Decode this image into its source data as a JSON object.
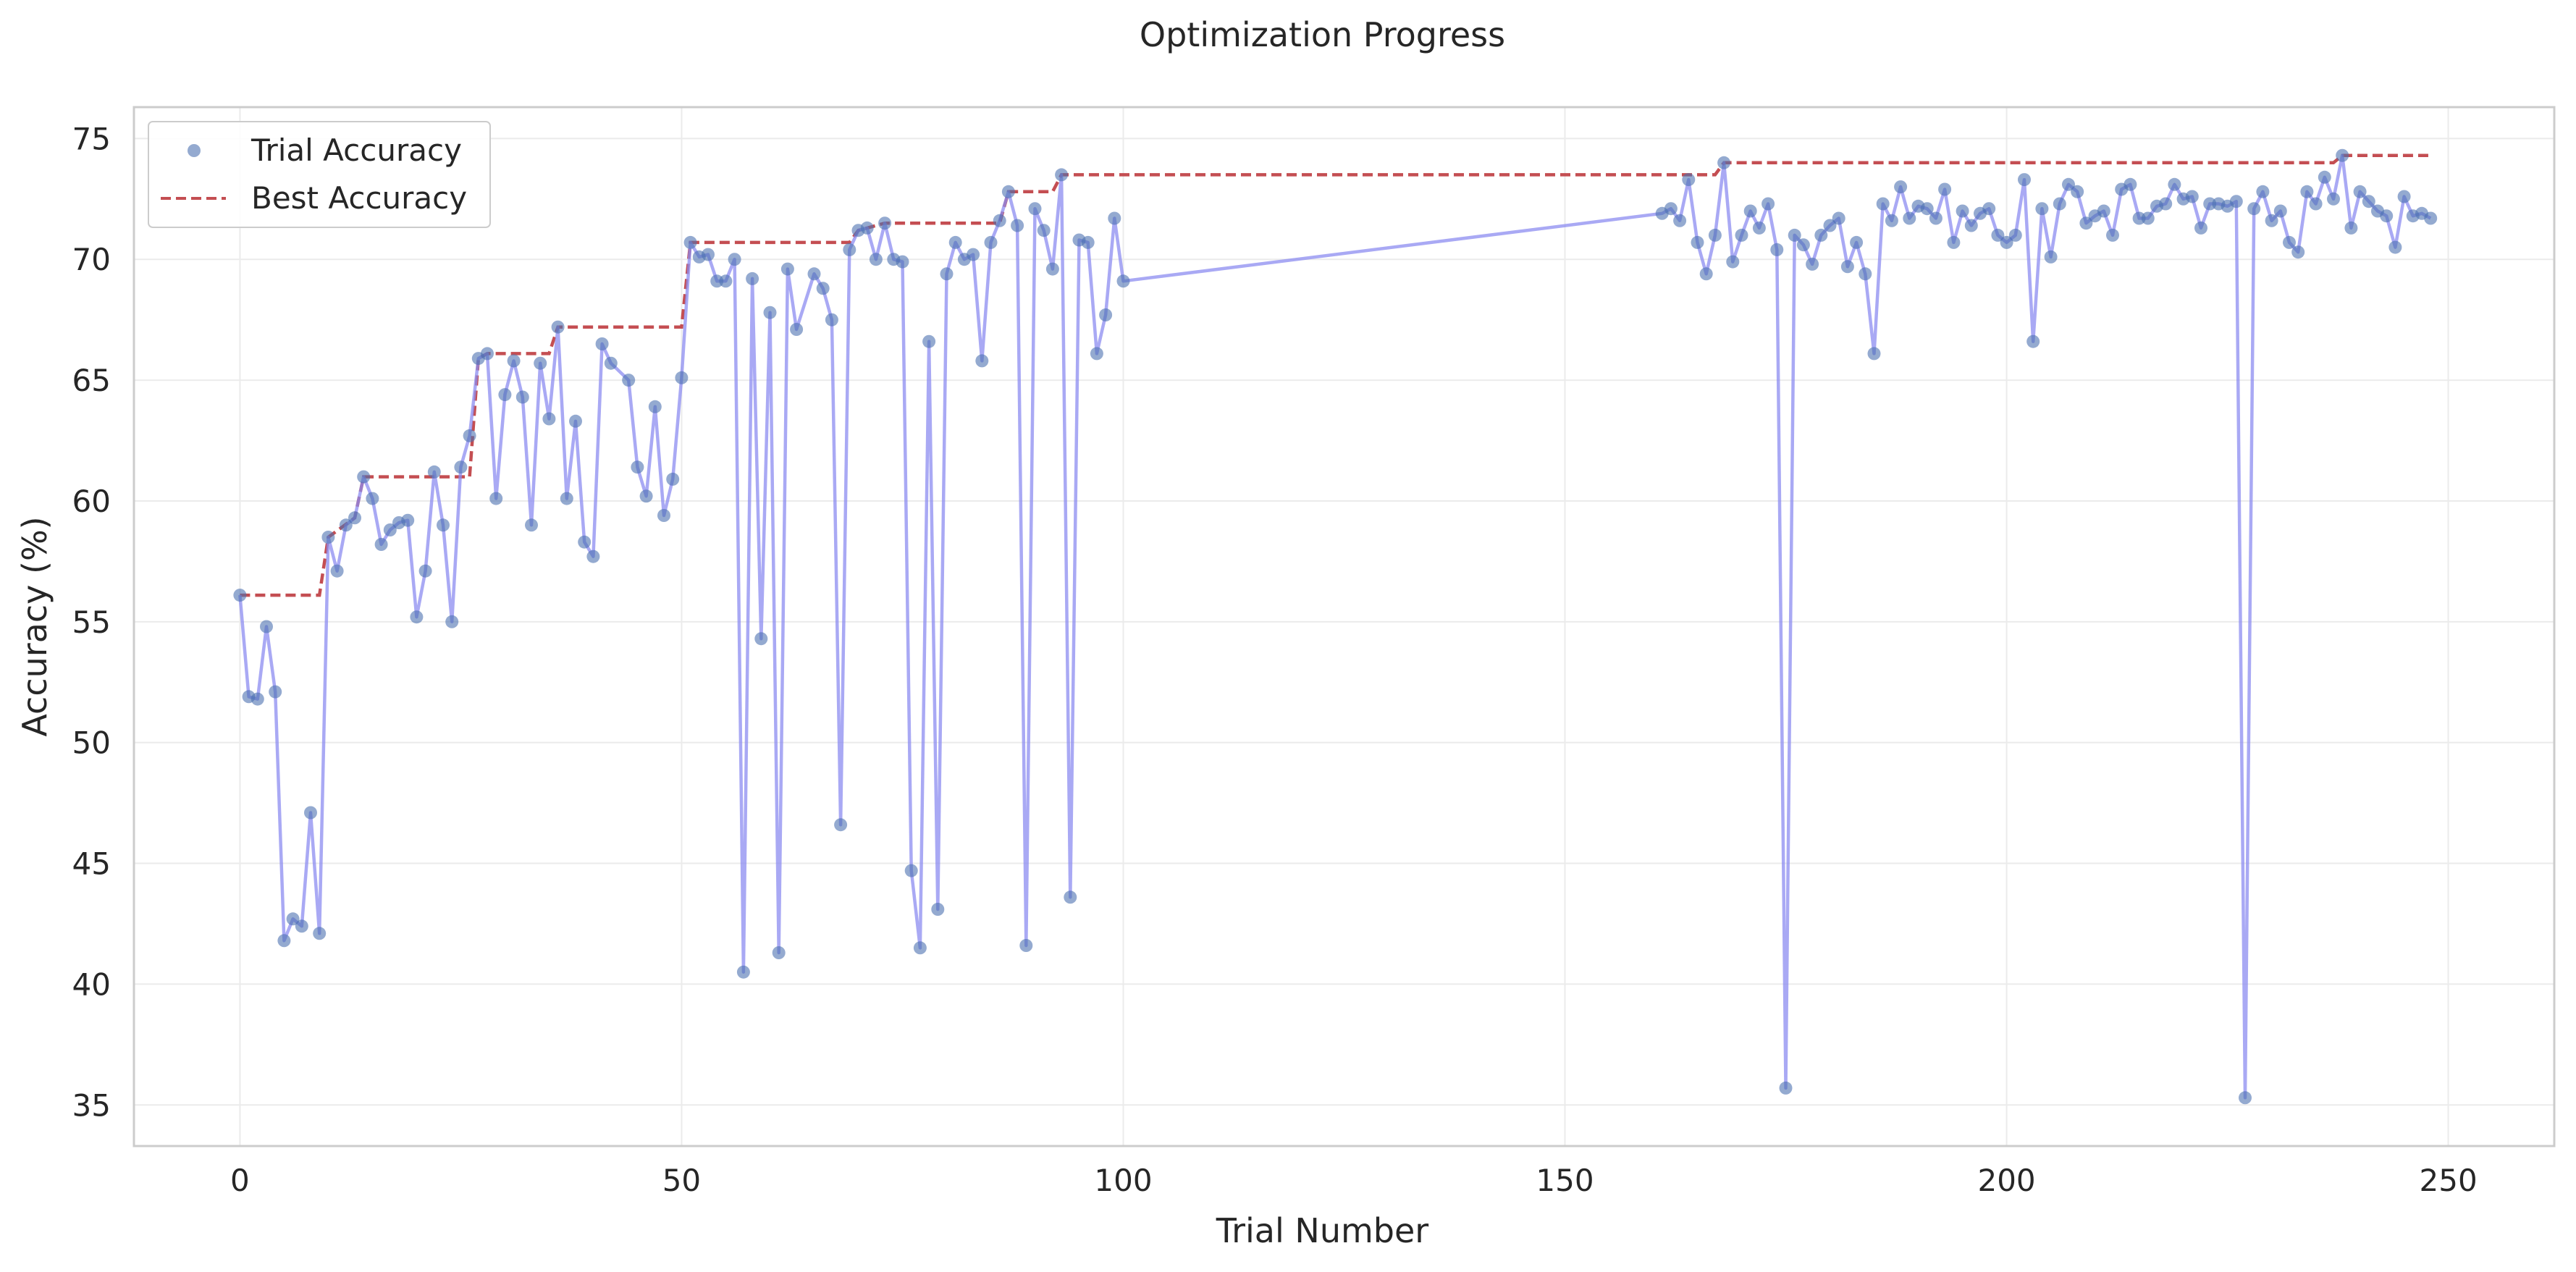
{
  "chart_data": {
    "type": "scatter",
    "title": "Optimization Progress",
    "xlabel": "Trial Number",
    "ylabel": "Accuracy (%)",
    "xlim": [
      -12,
      262
    ],
    "ylim": [
      33.3,
      76.3
    ],
    "xticks": [
      0,
      50,
      100,
      150,
      200,
      250
    ],
    "yticks": [
      35,
      40,
      45,
      50,
      55,
      60,
      65,
      70,
      75
    ],
    "grid": true,
    "legend_position": "top-left",
    "series": [
      {
        "name": "Trial Accuracy",
        "style": "scatter-with-connecting-line",
        "color": "#4c72b0",
        "line_color": "#8c8cf0",
        "points": [
          [
            0,
            56.1
          ],
          [
            1,
            51.9
          ],
          [
            2,
            51.8
          ],
          [
            3,
            54.8
          ],
          [
            4,
            52.1
          ],
          [
            5,
            41.8
          ],
          [
            6,
            42.7
          ],
          [
            7,
            42.4
          ],
          [
            8,
            47.1
          ],
          [
            9,
            42.1
          ],
          [
            10,
            58.5
          ],
          [
            11,
            57.1
          ],
          [
            12,
            59.0
          ],
          [
            13,
            59.3
          ],
          [
            14,
            61.0
          ],
          [
            15,
            60.1
          ],
          [
            16,
            58.2
          ],
          [
            17,
            58.8
          ],
          [
            18,
            59.1
          ],
          [
            19,
            59.2
          ],
          [
            20,
            55.2
          ],
          [
            21,
            57.1
          ],
          [
            22,
            61.2
          ],
          [
            23,
            59.0
          ],
          [
            24,
            55.0
          ],
          [
            25,
            61.4
          ],
          [
            26,
            62.7
          ],
          [
            27,
            65.9
          ],
          [
            28,
            66.1
          ],
          [
            29,
            60.1
          ],
          [
            30,
            64.4
          ],
          [
            31,
            65.8
          ],
          [
            32,
            64.3
          ],
          [
            33,
            59.0
          ],
          [
            34,
            65.7
          ],
          [
            35,
            63.4
          ],
          [
            36,
            67.2
          ],
          [
            37,
            60.1
          ],
          [
            38,
            63.3
          ],
          [
            39,
            58.3
          ],
          [
            40,
            57.7
          ],
          [
            41,
            66.5
          ],
          [
            42,
            65.7
          ],
          [
            44,
            65.0
          ],
          [
            45,
            61.4
          ],
          [
            46,
            60.2
          ],
          [
            47,
            63.9
          ],
          [
            48,
            59.4
          ],
          [
            49,
            60.9
          ],
          [
            50,
            65.1
          ],
          [
            51,
            70.7
          ],
          [
            52,
            70.1
          ],
          [
            53,
            70.2
          ],
          [
            54,
            69.1
          ],
          [
            55,
            69.1
          ],
          [
            56,
            70.0
          ],
          [
            57,
            40.5
          ],
          [
            58,
            69.2
          ],
          [
            59,
            54.3
          ],
          [
            60,
            67.8
          ],
          [
            61,
            41.3
          ],
          [
            62,
            69.6
          ],
          [
            63,
            67.1
          ],
          [
            65,
            69.4
          ],
          [
            66,
            68.8
          ],
          [
            67,
            67.5
          ],
          [
            68,
            46.6
          ],
          [
            69,
            70.4
          ],
          [
            70,
            71.2
          ],
          [
            71,
            71.3
          ],
          [
            72,
            70.0
          ],
          [
            73,
            71.5
          ],
          [
            74,
            70.0
          ],
          [
            75,
            69.9
          ],
          [
            76,
            44.7
          ],
          [
            77,
            41.5
          ],
          [
            78,
            66.6
          ],
          [
            79,
            43.1
          ],
          [
            80,
            69.4
          ],
          [
            81,
            70.7
          ],
          [
            82,
            70.0
          ],
          [
            83,
            70.2
          ],
          [
            84,
            65.8
          ],
          [
            85,
            70.7
          ],
          [
            86,
            71.6
          ],
          [
            87,
            72.8
          ],
          [
            88,
            71.4
          ],
          [
            89,
            41.6
          ],
          [
            90,
            72.1
          ],
          [
            91,
            71.2
          ],
          [
            92,
            69.6
          ],
          [
            93,
            73.5
          ],
          [
            94,
            43.6
          ],
          [
            95,
            70.8
          ],
          [
            96,
            70.7
          ],
          [
            97,
            66.1
          ],
          [
            98,
            67.7
          ],
          [
            99,
            71.7
          ],
          [
            100,
            69.1
          ],
          [
            161,
            71.9
          ],
          [
            162,
            72.1
          ],
          [
            163,
            71.6
          ],
          [
            164,
            73.3
          ],
          [
            165,
            70.7
          ],
          [
            166,
            69.4
          ],
          [
            167,
            71.0
          ],
          [
            168,
            74.0
          ],
          [
            169,
            69.9
          ],
          [
            170,
            71.0
          ],
          [
            171,
            72.0
          ],
          [
            172,
            71.3
          ],
          [
            173,
            72.3
          ],
          [
            174,
            70.4
          ],
          [
            175,
            35.7
          ],
          [
            176,
            71.0
          ],
          [
            177,
            70.6
          ],
          [
            178,
            69.8
          ],
          [
            179,
            71.0
          ],
          [
            180,
            71.4
          ],
          [
            181,
            71.7
          ],
          [
            182,
            69.7
          ],
          [
            183,
            70.7
          ],
          [
            184,
            69.4
          ],
          [
            185,
            66.1
          ],
          [
            186,
            72.3
          ],
          [
            187,
            71.6
          ],
          [
            188,
            73.0
          ],
          [
            189,
            71.7
          ],
          [
            190,
            72.2
          ],
          [
            191,
            72.1
          ],
          [
            192,
            71.7
          ],
          [
            193,
            72.9
          ],
          [
            194,
            70.7
          ],
          [
            195,
            72.0
          ],
          [
            196,
            71.4
          ],
          [
            197,
            71.9
          ],
          [
            198,
            72.1
          ],
          [
            199,
            71.0
          ],
          [
            200,
            70.7
          ],
          [
            201,
            71.0
          ],
          [
            202,
            73.3
          ],
          [
            203,
            66.6
          ],
          [
            204,
            72.1
          ],
          [
            205,
            70.1
          ],
          [
            206,
            72.3
          ],
          [
            207,
            73.1
          ],
          [
            208,
            72.8
          ],
          [
            209,
            71.5
          ],
          [
            210,
            71.8
          ],
          [
            211,
            72.0
          ],
          [
            212,
            71.0
          ],
          [
            213,
            72.9
          ],
          [
            214,
            73.1
          ],
          [
            215,
            71.7
          ],
          [
            216,
            71.7
          ],
          [
            217,
            72.2
          ],
          [
            218,
            72.3
          ],
          [
            219,
            73.1
          ],
          [
            220,
            72.5
          ],
          [
            221,
            72.6
          ],
          [
            222,
            71.3
          ],
          [
            223,
            72.3
          ],
          [
            224,
            72.3
          ],
          [
            225,
            72.2
          ],
          [
            226,
            72.4
          ],
          [
            227,
            35.3
          ],
          [
            228,
            72.1
          ],
          [
            229,
            72.8
          ],
          [
            230,
            71.6
          ],
          [
            231,
            72.0
          ],
          [
            232,
            70.7
          ],
          [
            233,
            70.3
          ],
          [
            234,
            72.8
          ],
          [
            235,
            72.3
          ],
          [
            236,
            73.4
          ],
          [
            237,
            72.5
          ],
          [
            238,
            74.3
          ],
          [
            239,
            71.3
          ],
          [
            240,
            72.8
          ],
          [
            241,
            72.4
          ],
          [
            242,
            72.0
          ],
          [
            243,
            71.8
          ],
          [
            244,
            70.5
          ],
          [
            245,
            72.6
          ],
          [
            246,
            71.8
          ],
          [
            247,
            71.9
          ],
          [
            248,
            71.7
          ]
        ]
      },
      {
        "name": "Best Accuracy",
        "style": "dashed-step",
        "color": "#c44e52",
        "points": [
          [
            0,
            56.1
          ],
          [
            9,
            56.1
          ],
          [
            10,
            58.5
          ],
          [
            13,
            59.3
          ],
          [
            14,
            61.0
          ],
          [
            26,
            61.0
          ],
          [
            27,
            65.9
          ],
          [
            28,
            66.1
          ],
          [
            35,
            66.1
          ],
          [
            36,
            67.2
          ],
          [
            50,
            67.2
          ],
          [
            51,
            70.7
          ],
          [
            69,
            70.7
          ],
          [
            70,
            71.2
          ],
          [
            71,
            71.3
          ],
          [
            73,
            71.5
          ],
          [
            86,
            71.5
          ],
          [
            87,
            72.8
          ],
          [
            92,
            72.8
          ],
          [
            93,
            73.5
          ],
          [
            167,
            73.5
          ],
          [
            168,
            74.0
          ],
          [
            237,
            74.0
          ],
          [
            238,
            74.3
          ],
          [
            248,
            74.3
          ]
        ]
      }
    ]
  }
}
